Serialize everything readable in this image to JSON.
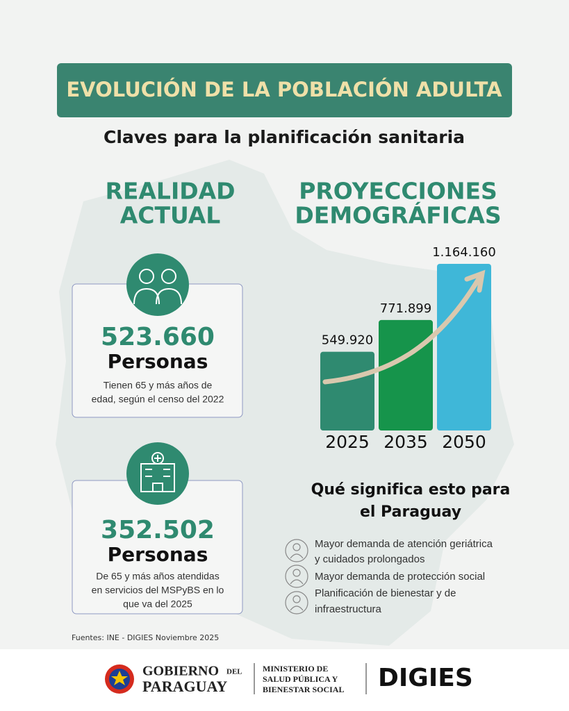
{
  "header": {
    "title": "EVOLUCIÓN DE LA POBLACIÓN ADULTA",
    "subtitle": "Claves para la planificación sanitaria"
  },
  "current": {
    "heading": [
      "REALIDAD",
      "ACTUAL"
    ],
    "cards": [
      {
        "number": "523.660",
        "unit": "Personas",
        "description": [
          "Tienen 65 y más años de",
          "edad, según el censo del 2022"
        ]
      },
      {
        "number": "352.502",
        "unit": "Personas",
        "description": [
          "De 65 y más años atendidas",
          "en servicios del MSPyBS en lo",
          "que va del 2025"
        ]
      }
    ]
  },
  "chart_data": {
    "type": "bar",
    "title": [
      "PROYECCIONES",
      "DEMOGRÁFICAS"
    ],
    "categories": [
      "2025",
      "2035",
      "2050"
    ],
    "values": [
      549920,
      771899,
      1164160
    ],
    "value_labels": [
      "549.920",
      "771.899",
      "1.164.160"
    ],
    "colors": [
      "#2f8a70",
      "#16944b",
      "#3fb7d8"
    ]
  },
  "implications": {
    "title": [
      "Qué significa esto para",
      "el Paraguay"
    ],
    "items": [
      [
        "Mayor demanda de atención geriátrica",
        "y cuidados prolongados"
      ],
      [
        "Mayor demanda de protección social"
      ],
      [
        "Planificación de bienestar y de",
        "infraestructura"
      ]
    ]
  },
  "source": "Fuentes: INE - DIGIES Noviembre 2025",
  "footer": {
    "government": [
      "GOBIERNO",
      "DEL",
      "PARAGUAY"
    ],
    "ministry": [
      "MINISTERIO DE",
      "SALUD PÚBLICA Y",
      "BIENESTAR SOCIAL"
    ],
    "unit": "DIGIES"
  }
}
